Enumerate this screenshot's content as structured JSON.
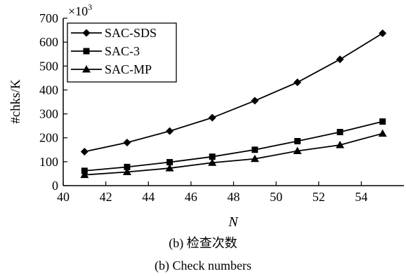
{
  "chart_data": {
    "type": "line",
    "x": [
      41,
      43,
      45,
      47,
      49,
      51,
      53,
      55
    ],
    "series": [
      {
        "name": "SAC-SDS",
        "marker": "diamond",
        "values": [
          142,
          180,
          228,
          284,
          355,
          432,
          528,
          637
        ]
      },
      {
        "name": "SAC-3",
        "marker": "square",
        "values": [
          62,
          78,
          98,
          121,
          150,
          186,
          224,
          268
        ]
      },
      {
        "name": "SAC-MP",
        "marker": "triangle",
        "values": [
          45,
          57,
          73,
          96,
          112,
          145,
          170,
          218
        ]
      }
    ],
    "xlabel": "N",
    "ylabel": "#chks/K",
    "y_multiplier": "×10",
    "y_multiplier_exp": "3",
    "xlim": [
      40,
      56
    ],
    "ylim": [
      0,
      700
    ],
    "xticks": [
      40,
      42,
      44,
      46,
      48,
      50,
      52,
      54
    ],
    "yticks": [
      0,
      100,
      200,
      300,
      400,
      500,
      600,
      700
    ],
    "grid": false,
    "legend_position": "top-left"
  },
  "captions": {
    "sub_cn": "(b) 检查次数",
    "sub_en": "(b) Check numbers"
  }
}
